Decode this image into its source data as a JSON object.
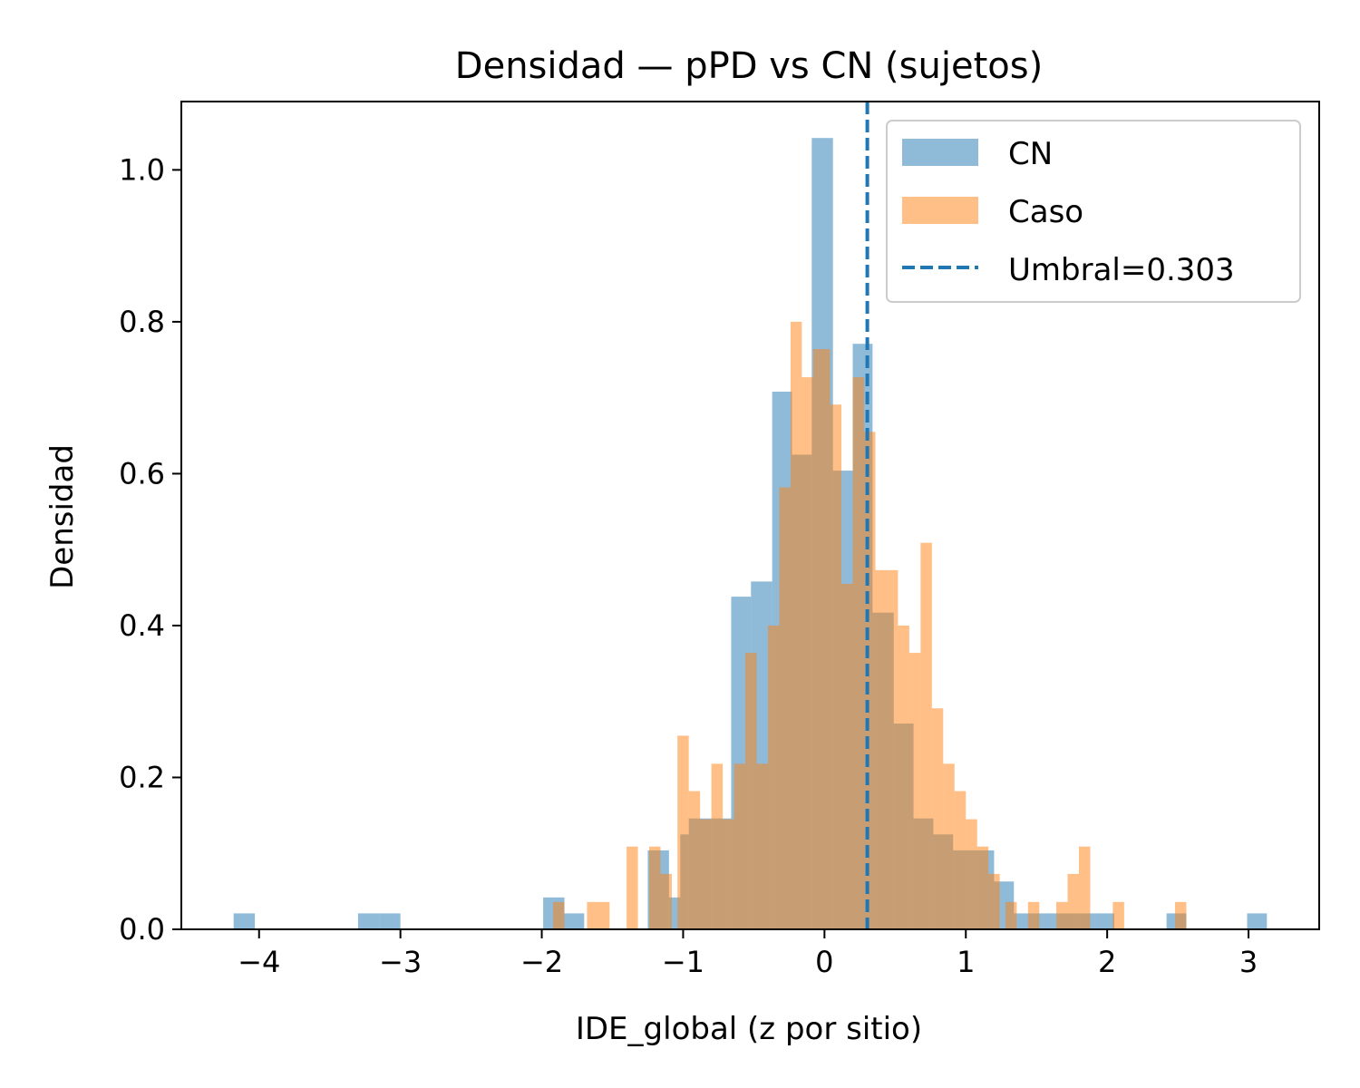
{
  "chart_data": {
    "type": "histogram",
    "title": "Densidad — pPD vs CN (sujetos)",
    "xlabel": "IDE_global (z por sitio)",
    "ylabel": "Densidad",
    "xlim": [
      -4.55,
      3.5
    ],
    "ylim": [
      0,
      1.09
    ],
    "xticks": [
      -4,
      -3,
      -2,
      -1,
      0,
      1,
      2,
      3
    ],
    "xtick_labels": [
      "−4",
      "−3",
      "−2",
      "−1",
      "0",
      "1",
      "2",
      "3"
    ],
    "yticks": [
      0,
      0.2,
      0.4,
      0.6,
      0.8,
      1.0
    ],
    "ytick_labels": [
      "0.0",
      "0.2",
      "0.4",
      "0.6",
      "0.8",
      "1.0"
    ],
    "grid": false,
    "legend_position": "top-right",
    "threshold": {
      "label": "Umbral=0.303",
      "value": 0.303,
      "color": "#1f77b4",
      "style": "dashed"
    },
    "series": [
      {
        "name": "CN",
        "color": "#1f77b4",
        "alpha": 0.5,
        "bins": [
          [
            -4.18,
            -4.03,
            0.021
          ],
          [
            -3.3,
            -3.15,
            0.021
          ],
          [
            -3.15,
            -3.0,
            0.021
          ],
          [
            -1.99,
            -1.84,
            0.042
          ],
          [
            -1.84,
            -1.7,
            0.021
          ],
          [
            -1.25,
            -1.1,
            0.104
          ],
          [
            -1.1,
            -1.02,
            0.042
          ],
          [
            -1.02,
            -0.96,
            0.125
          ],
          [
            -0.96,
            -0.8,
            0.146
          ],
          [
            -0.8,
            -0.66,
            0.146
          ],
          [
            -0.66,
            -0.52,
            0.438
          ],
          [
            -0.52,
            -0.37,
            0.458
          ],
          [
            -0.37,
            -0.23,
            0.708
          ],
          [
            -0.23,
            -0.09,
            0.625
          ],
          [
            -0.09,
            0.06,
            1.042
          ],
          [
            0.06,
            0.2,
            0.604
          ],
          [
            0.2,
            0.34,
            0.771
          ],
          [
            0.34,
            0.49,
            0.417
          ],
          [
            0.49,
            0.63,
            0.271
          ],
          [
            0.63,
            0.77,
            0.146
          ],
          [
            0.77,
            0.91,
            0.125
          ],
          [
            0.91,
            1.06,
            0.104
          ],
          [
            1.06,
            1.2,
            0.104
          ],
          [
            1.2,
            1.34,
            0.063
          ],
          [
            1.34,
            1.48,
            0.021
          ],
          [
            1.48,
            1.63,
            0.021
          ],
          [
            1.63,
            1.77,
            0.021
          ],
          [
            1.77,
            1.91,
            0.021
          ],
          [
            1.91,
            2.05,
            0.021
          ],
          [
            2.42,
            2.56,
            0.021
          ],
          [
            2.99,
            3.13,
            0.021
          ]
        ]
      },
      {
        "name": "Caso",
        "color": "#ff7f0e",
        "alpha": 0.5,
        "bins": [
          [
            -1.92,
            -1.84,
            0.036
          ],
          [
            -1.68,
            -1.52,
            0.036
          ],
          [
            -1.4,
            -1.32,
            0.109
          ],
          [
            -1.24,
            -1.16,
            0.109
          ],
          [
            -1.16,
            -1.08,
            0.073
          ],
          [
            -1.04,
            -0.96,
            0.255
          ],
          [
            -0.96,
            -0.88,
            0.182
          ],
          [
            -0.88,
            -0.8,
            0.145
          ],
          [
            -0.8,
            -0.72,
            0.218
          ],
          [
            -0.72,
            -0.64,
            0.145
          ],
          [
            -0.64,
            -0.56,
            0.218
          ],
          [
            -0.56,
            -0.48,
            0.364
          ],
          [
            -0.48,
            -0.4,
            0.218
          ],
          [
            -0.4,
            -0.32,
            0.4
          ],
          [
            -0.32,
            -0.24,
            0.582
          ],
          [
            -0.24,
            -0.16,
            0.8
          ],
          [
            -0.16,
            -0.08,
            0.727
          ],
          [
            -0.08,
            0.04,
            0.764
          ],
          [
            0.04,
            0.12,
            0.691
          ],
          [
            0.12,
            0.2,
            0.455
          ],
          [
            0.2,
            0.28,
            0.727
          ],
          [
            0.28,
            0.36,
            0.655
          ],
          [
            0.36,
            0.44,
            0.473
          ],
          [
            0.44,
            0.52,
            0.473
          ],
          [
            0.52,
            0.6,
            0.4
          ],
          [
            0.6,
            0.68,
            0.364
          ],
          [
            0.68,
            0.76,
            0.509
          ],
          [
            0.76,
            0.84,
            0.291
          ],
          [
            0.84,
            0.92,
            0.218
          ],
          [
            0.92,
            1.0,
            0.182
          ],
          [
            1.0,
            1.08,
            0.145
          ],
          [
            1.08,
            1.16,
            0.109
          ],
          [
            1.16,
            1.24,
            0.073
          ],
          [
            1.28,
            1.36,
            0.036
          ],
          [
            1.44,
            1.52,
            0.036
          ],
          [
            1.64,
            1.72,
            0.036
          ],
          [
            1.72,
            1.8,
            0.073
          ],
          [
            1.8,
            1.88,
            0.109
          ],
          [
            2.04,
            2.12,
            0.036
          ],
          [
            2.48,
            2.56,
            0.036
          ]
        ]
      }
    ]
  }
}
